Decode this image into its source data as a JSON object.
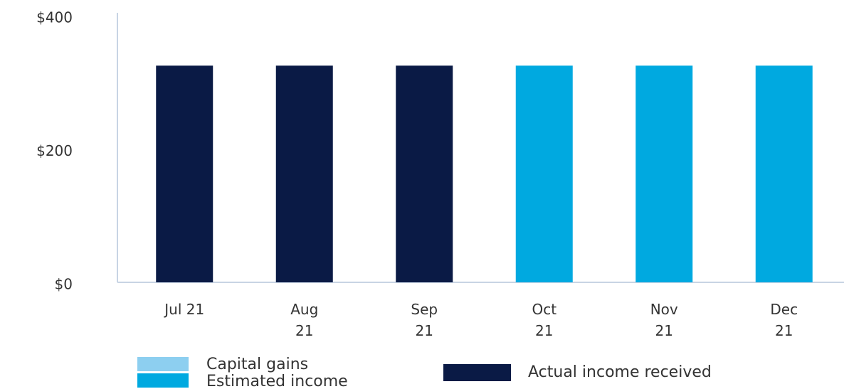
{
  "chart_data": {
    "type": "bar",
    "categories": [
      "Jul 21",
      "Aug\n21",
      "Sep\n21",
      "Oct\n21",
      "Nov\n21",
      "Dec\n21"
    ],
    "series": [
      {
        "name": "Capital gains",
        "color": "#8dcff0",
        "values": [
          0,
          0,
          0,
          0,
          0,
          0
        ]
      },
      {
        "name": "Estimated income",
        "color": "#00a9e0",
        "values": [
          null,
          null,
          null,
          325,
          325,
          325
        ]
      },
      {
        "name": "Actual income received",
        "color": "#0a1a45",
        "values": [
          325,
          325,
          325,
          null,
          null,
          null
        ]
      }
    ],
    "ylim": [
      0,
      400
    ],
    "yticks": [
      {
        "value": 0,
        "label": "$0"
      },
      {
        "value": 200,
        "label": "$200"
      },
      {
        "value": 400,
        "label": "$400"
      }
    ],
    "grid": false
  }
}
